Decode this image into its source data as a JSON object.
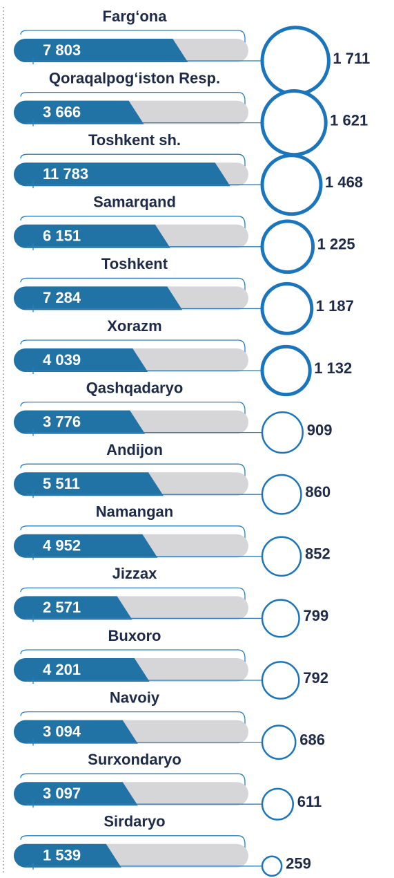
{
  "chart_data": {
    "type": "bar-bubble",
    "categories": [
      "Farg‘ona",
      "Qoraqalpog‘iston Resp.",
      "Toshkent sh.",
      "Samarqand",
      "Toshkent",
      "Xorazm",
      "Qashqadaryo",
      "Andijon",
      "Namangan",
      "Jizzax",
      "Buxoro",
      "Navoiy",
      "Surxondaryo",
      "Sirdaryo"
    ],
    "series": [
      {
        "color": "#2273a5",
        "values": [
          7803,
          3666,
          11783,
          6151,
          7284,
          4039,
          3776,
          5511,
          4952,
          2571,
          4201,
          3094,
          3097,
          1539
        ],
        "value_labels": [
          "7 803",
          "3 666",
          "11 783",
          "6 151",
          "7 284",
          "4 039",
          "3 776",
          "5 511",
          "4 952",
          "2 571",
          "4 201",
          "3 094",
          "3 097",
          "1 539"
        ]
      },
      {
        "color": "#1b75bc",
        "values": [
          1711,
          1621,
          1468,
          1225,
          1187,
          1132,
          909,
          860,
          852,
          799,
          792,
          686,
          611,
          259
        ],
        "value_labels": [
          "1 711",
          "1 621",
          "1 468",
          "1 225",
          "1 187",
          "1 132",
          "909",
          "860",
          "852",
          "799",
          "792",
          "686",
          "611",
          "259"
        ]
      }
    ]
  }
}
